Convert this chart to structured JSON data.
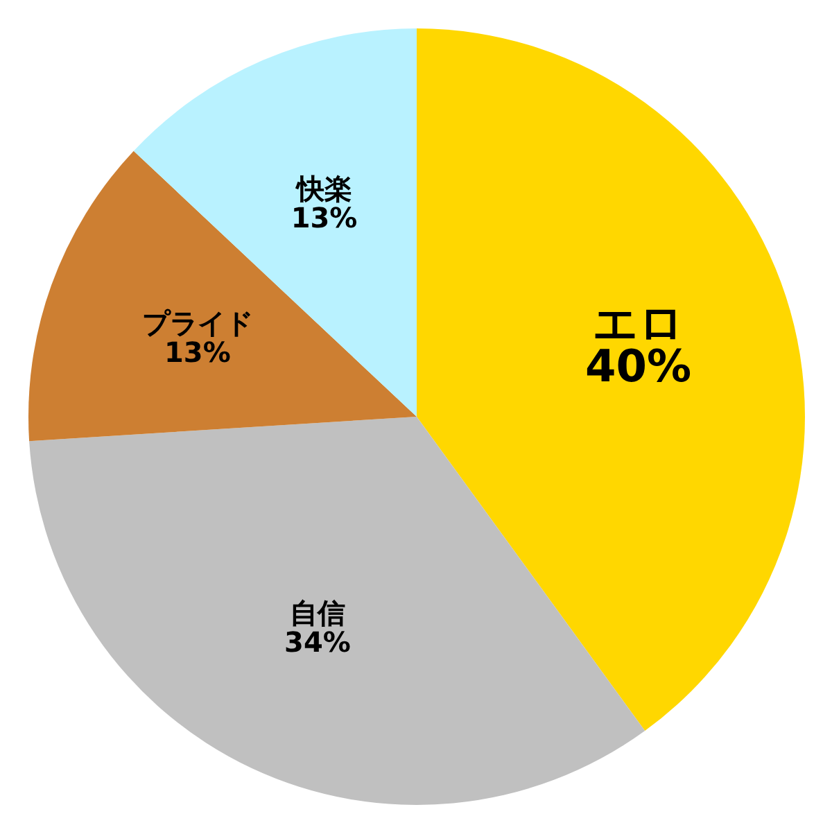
{
  "chart_data": {
    "type": "pie",
    "categories": [
      "エロ",
      "自信",
      "プライド",
      "快楽"
    ],
    "values": [
      40,
      34,
      13,
      13
    ],
    "colors": [
      "#ffd700",
      "#c0c0c0",
      "#cd7f32",
      "#b9f2ff"
    ],
    "value_labels": [
      "40%",
      "34%",
      "13%",
      "13%"
    ]
  }
}
